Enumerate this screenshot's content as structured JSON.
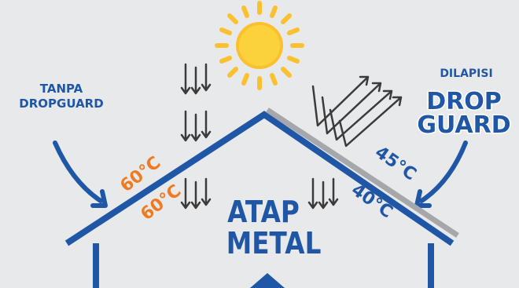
{
  "left_label": {
    "line1": "TANPA",
    "line2": "DROPGUARD"
  },
  "right_label": {
    "top": "DILAPISI"
  },
  "logo": {
    "word1": "DROP",
    "word2": "GUARD"
  },
  "roof_label": {
    "line1": "ATAP",
    "line2": "METAL"
  },
  "temperatures": {
    "uncoated_outer": "60°C",
    "uncoated_inner": "60°C",
    "coated_outer": "45°C",
    "coated_inner": "40°C"
  },
  "colors": {
    "background": "#e8e9eb",
    "brand_blue": "#1f57a6",
    "hot_orange": "#f07a1f",
    "sun_yellow": "#fbc02d",
    "coating_gray": "#a5a7aa",
    "arrow_gray": "#3b3b3b"
  },
  "icons": [
    "sun-icon",
    "heat-down-arrows-icon",
    "reflected-arrows-icon",
    "curved-pointer-arrow-icon"
  ]
}
